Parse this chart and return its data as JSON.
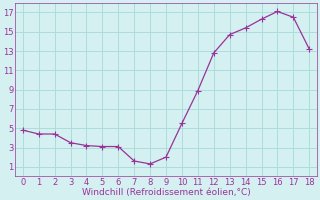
{
  "x": [
    0,
    1,
    2,
    3,
    4,
    5,
    6,
    7,
    8,
    9,
    10,
    11,
    12,
    13,
    14,
    15,
    16,
    17,
    18
  ],
  "y": [
    4.8,
    4.4,
    4.4,
    3.5,
    3.2,
    3.1,
    3.1,
    1.6,
    1.3,
    2.0,
    5.5,
    8.9,
    12.8,
    14.7,
    15.4,
    16.3,
    17.1,
    16.5,
    13.2
  ],
  "line_color": "#993399",
  "marker": "+",
  "marker_size": 4,
  "marker_lw": 0.8,
  "bg_color": "#d4f0f0",
  "grid_color": "#aadddd",
  "xlabel": "Windchill (Refroidissement éolien,°C)",
  "xlabel_fontsize": 6.5,
  "xticks": [
    0,
    1,
    2,
    3,
    4,
    5,
    6,
    7,
    8,
    9,
    10,
    11,
    12,
    13,
    14,
    15,
    16,
    17,
    18
  ],
  "yticks": [
    1,
    3,
    5,
    7,
    9,
    11,
    13,
    15,
    17
  ],
  "ylim": [
    0,
    18
  ],
  "xlim": [
    -0.5,
    18.5
  ],
  "tick_color": "#993399",
  "tick_fontsize": 6,
  "spine_color": "#993399",
  "line_width": 0.9
}
